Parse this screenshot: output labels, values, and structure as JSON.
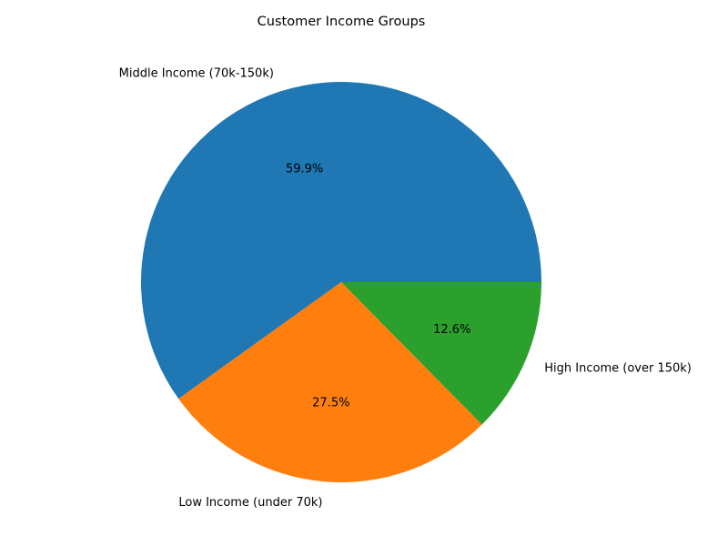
{
  "chart_data": {
    "type": "pie",
    "title": "Customer Income Groups",
    "slices": [
      {
        "label": "Middle Income (70k-150k)",
        "value": 59.9,
        "pct_label": "59.9%",
        "color": "#1f77b4"
      },
      {
        "label": "Low Income (under 70k)",
        "value": 27.5,
        "pct_label": "27.5%",
        "color": "#ff7f0e"
      },
      {
        "label": "High Income (over 150k)",
        "value": 12.6,
        "pct_label": "12.6%",
        "color": "#2ca02c"
      }
    ],
    "start_angle_deg": 0,
    "direction": "counterclockwise"
  }
}
